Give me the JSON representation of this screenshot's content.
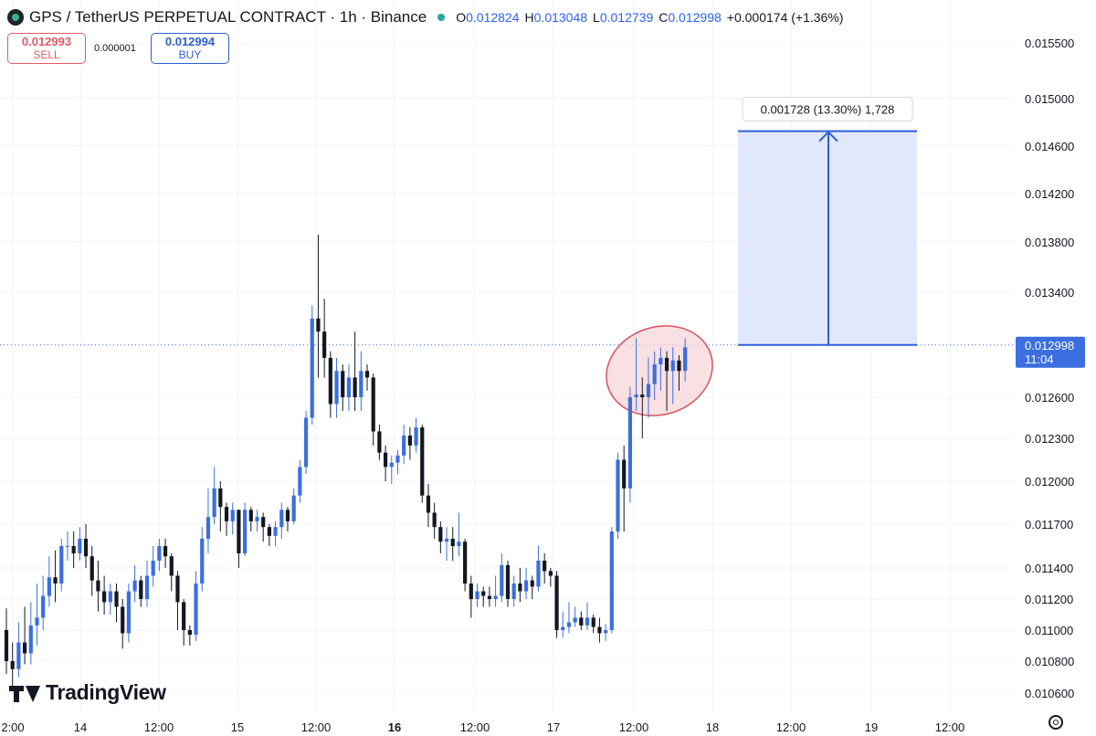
{
  "header": {
    "title": "GPS / TetherUS PERPETUAL CONTRACT · 1h · Binance",
    "open_label": "O",
    "open": "0.012824",
    "high_label": "H",
    "high": "0.013048",
    "low_label": "L",
    "low": "0.012739",
    "close_label": "C",
    "close": "0.012998",
    "change": "+0.000174 (+1.36%)"
  },
  "trade": {
    "sell_price": "0.012993",
    "sell_label": "SELL",
    "spread": "0.000001",
    "buy_price": "0.012994",
    "buy_label": "BUY"
  },
  "branding": {
    "name": "TradingView"
  },
  "colors": {
    "up": "#3b6fe0",
    "down": "#131722",
    "measure": "#2f5fd6",
    "measure_fill": "#dfe6fb",
    "highlight_stroke": "#d9535f",
    "highlight_fill": "#f7d6d8",
    "price_line": "#2962ff"
  },
  "icons": {
    "settings": "gear-icon",
    "logo": "tradingview-logo-icon"
  },
  "chart_data": {
    "type": "candlestick",
    "y_axis": {
      "ticks": [
        0.0106,
        0.0108,
        0.011,
        0.0112,
        0.0114,
        0.0117,
        0.012,
        0.0123,
        0.0126,
        0.0134,
        0.0138,
        0.0142,
        0.0146,
        0.015,
        0.0155
      ],
      "tick_labels": [
        "0.010600",
        "0.010800",
        "0.011000",
        "0.011200",
        "0.011400",
        "0.011700",
        "0.012000",
        "0.012300",
        "0.012600",
        "0.013400",
        "0.013800",
        "0.014200",
        "0.014600",
        "0.015000",
        "0.015500"
      ]
    },
    "x_axis": {
      "labels": [
        "2:00",
        "14",
        "12:00",
        "15",
        "12:00",
        "16",
        "12:00",
        "17",
        "12:00",
        "18",
        "12:00",
        "19",
        "12:00"
      ],
      "bold": [
        false,
        false,
        false,
        false,
        false,
        true,
        false,
        false,
        false,
        false,
        false,
        false,
        false
      ]
    },
    "current_price": {
      "value": 0.012998,
      "label": "0.012998",
      "countdown": "11:04"
    },
    "measure": {
      "from": 0.012998,
      "to": 0.014726,
      "label": "0.001728 (13.30%) 1,728"
    },
    "candles": [
      [
        0.011,
        0.0108,
        0.01114,
        0.01072
      ],
      [
        0.0108,
        0.01075,
        0.01092,
        0.01062
      ],
      [
        0.01075,
        0.01092,
        0.01105,
        0.0107
      ],
      [
        0.01092,
        0.01085,
        0.01115,
        0.01078
      ],
      [
        0.01085,
        0.01103,
        0.01118,
        0.01078
      ],
      [
        0.01103,
        0.01108,
        0.0113,
        0.0109
      ],
      [
        0.01108,
        0.01122,
        0.01135,
        0.011
      ],
      [
        0.01122,
        0.01134,
        0.01148,
        0.01115
      ],
      [
        0.01134,
        0.0113,
        0.01152,
        0.01118
      ],
      [
        0.0113,
        0.01155,
        0.0116,
        0.01125
      ],
      [
        0.01155,
        0.01155,
        0.01165,
        0.01145
      ],
      [
        0.01155,
        0.0115,
        0.01165,
        0.0114
      ],
      [
        0.0115,
        0.0116,
        0.01168,
        0.01145
      ],
      [
        0.0116,
        0.01148,
        0.0117,
        0.0114
      ],
      [
        0.01148,
        0.01132,
        0.01155,
        0.01122
      ],
      [
        0.01132,
        0.01125,
        0.01145,
        0.01112
      ],
      [
        0.01125,
        0.01118,
        0.01135,
        0.0111
      ],
      [
        0.01118,
        0.01125,
        0.0113,
        0.0111
      ],
      [
        0.01125,
        0.01115,
        0.0113,
        0.01105
      ],
      [
        0.01115,
        0.01098,
        0.0112,
        0.01088
      ],
      [
        0.01098,
        0.01125,
        0.0113,
        0.01092
      ],
      [
        0.01125,
        0.01132,
        0.01142,
        0.01118
      ],
      [
        0.01132,
        0.0112,
        0.01135,
        0.01115
      ],
      [
        0.0112,
        0.01135,
        0.01145,
        0.01115
      ],
      [
        0.01135,
        0.01145,
        0.01155,
        0.01128
      ],
      [
        0.01145,
        0.01155,
        0.0116,
        0.01138
      ],
      [
        0.01155,
        0.01148,
        0.0116,
        0.0114
      ],
      [
        0.01148,
        0.01135,
        0.0115,
        0.01125
      ],
      [
        0.01135,
        0.01118,
        0.01138,
        0.011
      ],
      [
        0.01118,
        0.011,
        0.0112,
        0.0109
      ],
      [
        0.011,
        0.01097,
        0.01103,
        0.0109
      ],
      [
        0.01097,
        0.0113,
        0.01138,
        0.01093
      ],
      [
        0.0113,
        0.0116,
        0.01168,
        0.01125
      ],
      [
        0.0116,
        0.01175,
        0.01195,
        0.0115
      ],
      [
        0.01175,
        0.01195,
        0.0121,
        0.0117
      ],
      [
        0.01195,
        0.01182,
        0.012,
        0.01165
      ],
      [
        0.01182,
        0.01172,
        0.01185,
        0.01162
      ],
      [
        0.01172,
        0.0118,
        0.01185,
        0.01163
      ],
      [
        0.0118,
        0.0115,
        0.0118,
        0.0114
      ],
      [
        0.0115,
        0.0118,
        0.01185,
        0.01148
      ],
      [
        0.0118,
        0.01172,
        0.01182,
        0.01165
      ],
      [
        0.01172,
        0.01175,
        0.0118,
        0.01165
      ],
      [
        0.01175,
        0.01168,
        0.01178,
        0.01158
      ],
      [
        0.01168,
        0.01162,
        0.0117,
        0.01155
      ],
      [
        0.01162,
        0.01168,
        0.01172,
        0.01155
      ],
      [
        0.01168,
        0.0118,
        0.01185,
        0.0116
      ],
      [
        0.0118,
        0.01172,
        0.01182,
        0.01165
      ],
      [
        0.01172,
        0.0119,
        0.01195,
        0.0117
      ],
      [
        0.0119,
        0.0121,
        0.01215,
        0.01185
      ],
      [
        0.0121,
        0.01245,
        0.0125,
        0.01205
      ],
      [
        0.01245,
        0.0132,
        0.0133,
        0.0124
      ],
      [
        0.0132,
        0.0131,
        0.01386,
        0.01275
      ],
      [
        0.0131,
        0.0129,
        0.01335,
        0.01275
      ],
      [
        0.0129,
        0.01255,
        0.01295,
        0.01245
      ],
      [
        0.01255,
        0.0128,
        0.0129,
        0.01245
      ],
      [
        0.0128,
        0.0126,
        0.01285,
        0.0125
      ],
      [
        0.0126,
        0.01275,
        0.01285,
        0.0125
      ],
      [
        0.01275,
        0.0126,
        0.0131,
        0.0125
      ],
      [
        0.0126,
        0.0128,
        0.01295,
        0.0125
      ],
      [
        0.0128,
        0.01275,
        0.01285,
        0.01265
      ],
      [
        0.01275,
        0.01235,
        0.01278,
        0.01225
      ],
      [
        0.01235,
        0.0122,
        0.0124,
        0.01215
      ],
      [
        0.0122,
        0.0121,
        0.01225,
        0.012
      ],
      [
        0.0121,
        0.01213,
        0.01218,
        0.01198
      ],
      [
        0.01213,
        0.01218,
        0.01222,
        0.01205
      ],
      [
        0.01218,
        0.01232,
        0.0124,
        0.01212
      ],
      [
        0.01232,
        0.01225,
        0.01238,
        0.01215
      ],
      [
        0.01225,
        0.01238,
        0.01245,
        0.0122
      ],
      [
        0.01238,
        0.0119,
        0.0124,
        0.01185
      ],
      [
        0.0119,
        0.01178,
        0.01198,
        0.01168
      ],
      [
        0.01178,
        0.01168,
        0.01185,
        0.0116
      ],
      [
        0.01168,
        0.01158,
        0.01172,
        0.0115
      ],
      [
        0.01158,
        0.0116,
        0.01168,
        0.01145
      ],
      [
        0.0116,
        0.01155,
        0.01168,
        0.01145
      ],
      [
        0.01155,
        0.01158,
        0.01178,
        0.01148
      ],
      [
        0.01158,
        0.0113,
        0.0116,
        0.01125
      ],
      [
        0.0113,
        0.0112,
        0.01135,
        0.01108
      ],
      [
        0.0112,
        0.01125,
        0.0113,
        0.01115
      ],
      [
        0.01125,
        0.01122,
        0.01128,
        0.01115
      ],
      [
        0.01122,
        0.0112,
        0.01128,
        0.01115
      ],
      [
        0.0112,
        0.01122,
        0.01135,
        0.01115
      ],
      [
        0.01122,
        0.01142,
        0.0115,
        0.01118
      ],
      [
        0.01142,
        0.0112,
        0.01145,
        0.01115
      ],
      [
        0.0112,
        0.0113,
        0.01135,
        0.01115
      ],
      [
        0.0113,
        0.01125,
        0.0114,
        0.01118
      ],
      [
        0.01125,
        0.01132,
        0.0114,
        0.0112
      ],
      [
        0.01132,
        0.01128,
        0.01135,
        0.0112
      ],
      [
        0.01128,
        0.01145,
        0.01155,
        0.01125
      ],
      [
        0.01145,
        0.01138,
        0.0115,
        0.0113
      ],
      [
        0.01138,
        0.01135,
        0.0114,
        0.01128
      ],
      [
        0.01135,
        0.011,
        0.01138,
        0.01095
      ],
      [
        0.011,
        0.01102,
        0.01112,
        0.01095
      ],
      [
        0.01102,
        0.01105,
        0.01118,
        0.01098
      ],
      [
        0.01105,
        0.01108,
        0.01115,
        0.01102
      ],
      [
        0.01108,
        0.01103,
        0.01112,
        0.011
      ],
      [
        0.01103,
        0.01108,
        0.01118,
        0.011
      ],
      [
        0.01108,
        0.01102,
        0.0111,
        0.01098
      ],
      [
        0.01102,
        0.01098,
        0.01108,
        0.01092
      ],
      [
        0.01098,
        0.011,
        0.01104,
        0.01093
      ],
      [
        0.011,
        0.01165,
        0.01168,
        0.01098
      ],
      [
        0.01165,
        0.01215,
        0.0122,
        0.0116
      ],
      [
        0.01215,
        0.01195,
        0.01225,
        0.01165
      ],
      [
        0.01195,
        0.0126,
        0.01268,
        0.01185
      ],
      [
        0.0126,
        0.01262,
        0.01305,
        0.0125
      ],
      [
        0.01262,
        0.0126,
        0.01275,
        0.0123
      ],
      [
        0.0126,
        0.0127,
        0.0129,
        0.01245
      ],
      [
        0.0127,
        0.01285,
        0.01295,
        0.01258
      ],
      [
        0.01285,
        0.0129,
        0.01298,
        0.01265
      ],
      [
        0.0129,
        0.0128,
        0.01295,
        0.0125
      ],
      [
        0.0128,
        0.01288,
        0.01298,
        0.01255
      ],
      [
        0.01288,
        0.0128,
        0.01292,
        0.01265
      ],
      [
        0.0128,
        0.01298,
        0.01305,
        0.01272
      ]
    ]
  }
}
